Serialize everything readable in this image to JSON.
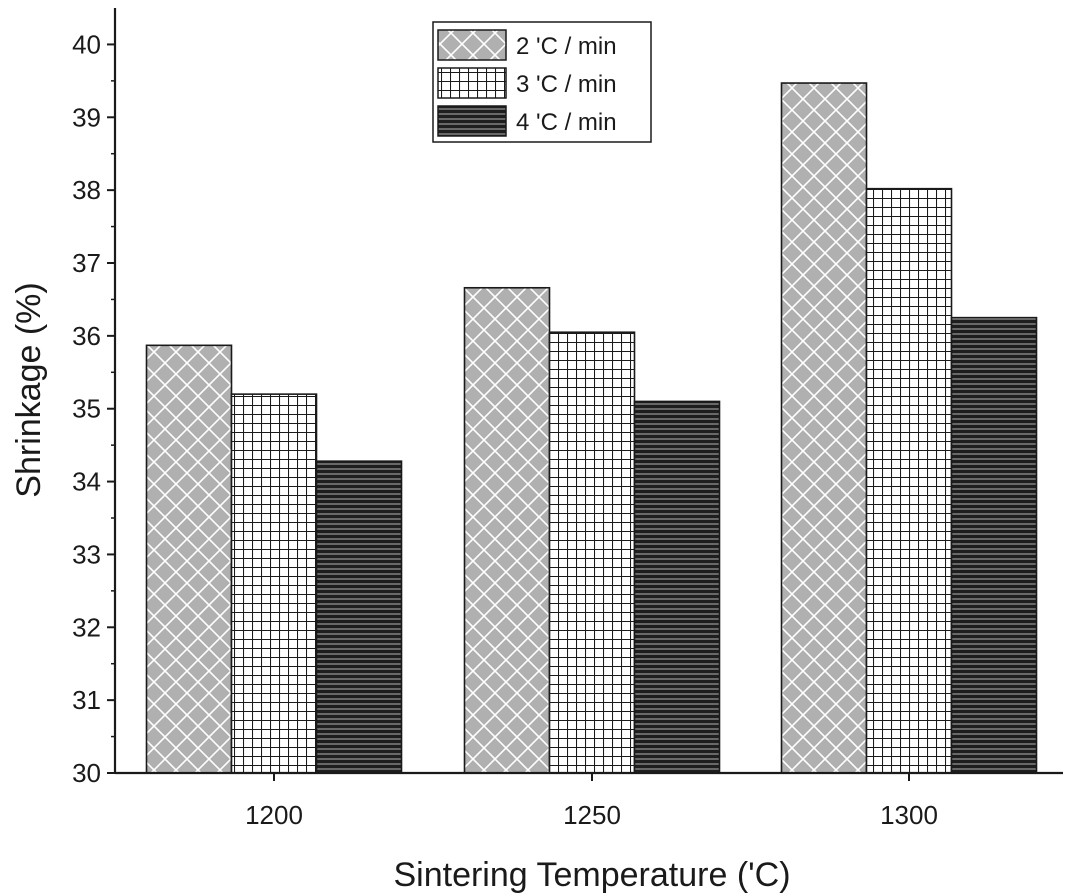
{
  "chart_data": {
    "type": "bar",
    "title": "",
    "xlabel": "Sintering Temperature ('C)",
    "ylabel": "Shrinkage (%)",
    "categories": [
      "1200",
      "1250",
      "1300"
    ],
    "ylim": [
      30,
      40.5
    ],
    "yticks": [
      30,
      31,
      32,
      33,
      34,
      35,
      36,
      37,
      38,
      39,
      40
    ],
    "legend_position": "top-center",
    "grid": false,
    "series": [
      {
        "name": "2 'C / min",
        "values": [
          35.87,
          36.66,
          39.47
        ],
        "pattern": "diagonal-crosshatch",
        "color": "#b0b0b0"
      },
      {
        "name": "3 'C / min",
        "values": [
          35.2,
          36.05,
          38.02
        ],
        "pattern": "square-grid",
        "color": "#ffffff"
      },
      {
        "name": "4 'C / min",
        "values": [
          34.28,
          35.1,
          36.25
        ],
        "pattern": "horizontal-lines",
        "color": "#1e1e1e"
      }
    ]
  }
}
